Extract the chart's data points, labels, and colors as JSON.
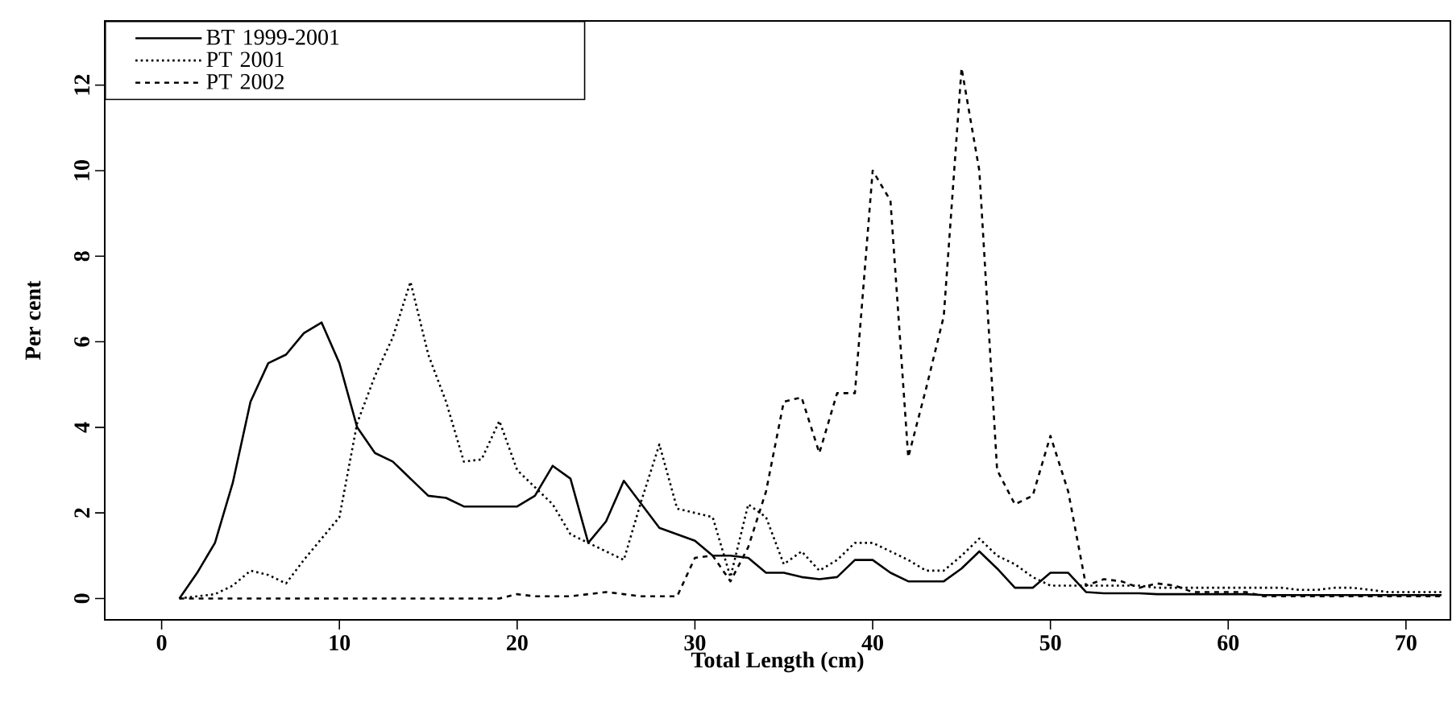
{
  "chart_data": {
    "type": "line",
    "xlabel": "Total Length (cm)",
    "ylabel": "Per cent",
    "x": [
      1,
      2,
      3,
      4,
      5,
      6,
      7,
      8,
      9,
      10,
      11,
      12,
      13,
      14,
      15,
      16,
      17,
      18,
      19,
      20,
      21,
      22,
      23,
      24,
      25,
      26,
      27,
      28,
      29,
      30,
      31,
      32,
      33,
      34,
      35,
      36,
      37,
      38,
      39,
      40,
      41,
      42,
      43,
      44,
      45,
      46,
      47,
      48,
      49,
      50,
      51,
      52,
      53,
      54,
      55,
      56,
      57,
      58,
      59,
      60,
      61,
      62,
      63,
      64,
      65,
      66,
      67,
      68,
      69,
      70,
      71,
      72
    ],
    "xlim": [
      -3.2,
      72.5
    ],
    "ylim": [
      -0.5,
      13.5
    ],
    "xticks": [
      0,
      10,
      20,
      30,
      40,
      50,
      60,
      70
    ],
    "yticks": [
      0,
      2,
      4,
      6,
      8,
      10,
      12
    ],
    "grid": false,
    "legend": "top left",
    "series": [
      {
        "name": "BT 1999-2001",
        "color": "#000000",
        "line_style": "solid",
        "values": [
          0,
          0.6,
          1.3,
          2.7,
          4.6,
          5.5,
          5.7,
          6.2,
          6.45,
          5.5,
          4.0,
          3.4,
          3.2,
          2.8,
          2.4,
          2.35,
          2.15,
          2.15,
          2.15,
          2.15,
          2.4,
          3.1,
          2.8,
          1.3,
          1.8,
          2.75,
          2.2,
          1.65,
          1.5,
          1.35,
          1.0,
          1.0,
          0.95,
          0.6,
          0.6,
          0.5,
          0.45,
          0.5,
          0.9,
          0.9,
          0.6,
          0.4,
          0.4,
          0.4,
          0.7,
          1.1,
          0.7,
          0.25,
          0.25,
          0.6,
          0.6,
          0.15,
          0.12,
          0.12,
          0.12,
          0.1,
          0.1,
          0.1,
          0.1,
          0.1,
          0.1,
          0.08,
          0.08,
          0.08,
          0.08,
          0.08,
          0.08,
          0.08,
          0.08,
          0.08,
          0.08,
          0.08
        ]
      },
      {
        "name": "PT 2001",
        "color": "#000000",
        "line_style": "dotted",
        "values": [
          0,
          0.05,
          0.1,
          0.3,
          0.65,
          0.55,
          0.35,
          0.9,
          1.4,
          1.9,
          4.1,
          5.2,
          6.1,
          7.4,
          5.7,
          4.6,
          3.2,
          3.25,
          4.15,
          3.0,
          2.6,
          2.2,
          1.5,
          1.3,
          1.1,
          0.9,
          2.3,
          3.6,
          2.1,
          2.0,
          1.9,
          0.5,
          2.2,
          1.9,
          0.8,
          1.1,
          0.65,
          0.9,
          1.3,
          1.3,
          1.1,
          0.9,
          0.65,
          0.65,
          1.0,
          1.4,
          1.0,
          0.8,
          0.5,
          0.3,
          0.3,
          0.3,
          0.3,
          0.3,
          0.3,
          0.25,
          0.25,
          0.25,
          0.25,
          0.25,
          0.25,
          0.25,
          0.25,
          0.2,
          0.2,
          0.25,
          0.25,
          0.2,
          0.15,
          0.15,
          0.15,
          0.15
        ]
      },
      {
        "name": "PT 2002",
        "color": "#000000",
        "line_style": "dashed",
        "values": [
          0,
          0,
          0,
          0,
          0,
          0,
          0,
          0,
          0,
          0,
          0,
          0,
          0,
          0,
          0,
          0,
          0,
          0,
          0,
          0.1,
          0.05,
          0.05,
          0.05,
          0.1,
          0.15,
          0.1,
          0.05,
          0.05,
          0.05,
          0.95,
          1.0,
          0.4,
          1.2,
          2.5,
          4.6,
          4.7,
          3.4,
          4.8,
          4.8,
          10.0,
          9.3,
          3.3,
          4.9,
          6.6,
          12.4,
          10.0,
          3.0,
          2.2,
          2.4,
          3.8,
          2.5,
          0.3,
          0.45,
          0.4,
          0.25,
          0.35,
          0.3,
          0.15,
          0.15,
          0.15,
          0.15,
          0.05,
          0.05,
          0.05,
          0.05,
          0.05,
          0.05,
          0.05,
          0.05,
          0.05,
          0.05,
          0.05
        ]
      }
    ]
  }
}
